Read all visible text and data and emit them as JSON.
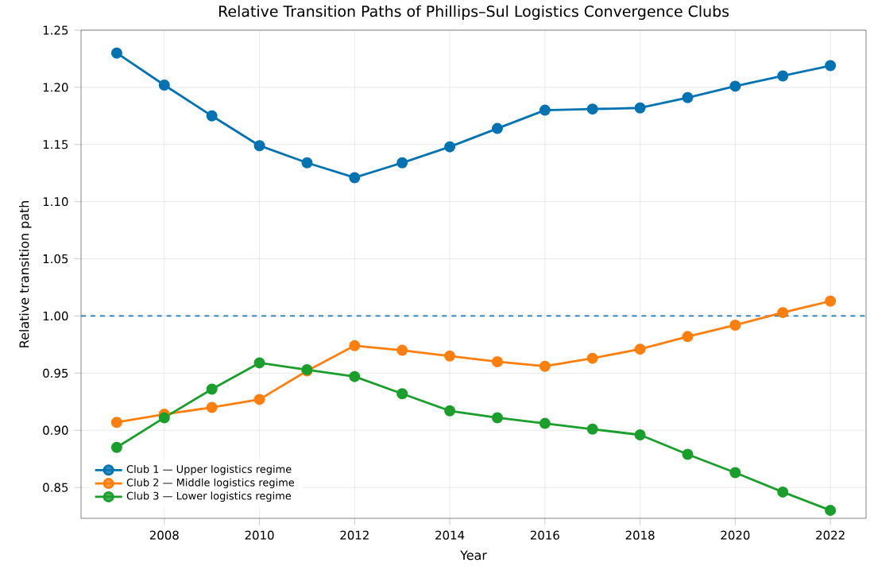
{
  "chart_data": {
    "type": "line",
    "title": "Relative Transition Paths of Phillips–Sul Logistics Convergence Clubs",
    "xlabel": "Year",
    "ylabel": "Relative transition path",
    "x": [
      2007,
      2008,
      2009,
      2010,
      2011,
      2012,
      2013,
      2014,
      2015,
      2016,
      2017,
      2018,
      2019,
      2020,
      2021,
      2022
    ],
    "series": [
      {
        "name": "Club 1 — Upper logistics regime",
        "color": "#0173b2",
        "values": [
          1.23,
          1.202,
          1.175,
          1.149,
          1.134,
          1.121,
          1.134,
          1.148,
          1.164,
          1.18,
          1.181,
          1.182,
          1.191,
          1.201,
          1.21,
          1.219
        ]
      },
      {
        "name": "Club 2 — Middle logistics regime",
        "color": "#ff7f0e",
        "values": [
          0.907,
          0.914,
          0.92,
          0.927,
          0.952,
          0.974,
          0.97,
          0.965,
          0.96,
          0.956,
          0.963,
          0.971,
          0.982,
          0.992,
          1.003,
          1.013
        ]
      },
      {
        "name": "Club 3 — Lower logistics regime",
        "color": "#1a9e2c",
        "values": [
          0.885,
          0.911,
          0.936,
          0.959,
          0.953,
          0.947,
          0.932,
          0.917,
          0.911,
          0.906,
          0.901,
          0.896,
          0.879,
          0.863,
          0.846,
          0.83
        ]
      }
    ],
    "xlim": [
      2006.25,
      2022.75
    ],
    "ylim": [
      0.823,
      1.25
    ],
    "xticks": [
      2008,
      2010,
      2012,
      2014,
      2016,
      2018,
      2020,
      2022
    ],
    "yticks": [
      0.85,
      {
        "value": 0.9,
        "label": "0.90"
      },
      0.95,
      {
        "value": 1.0,
        "label": "1.00"
      },
      1.05,
      {
        "value": 1.1,
        "label": "1.10"
      },
      1.15,
      {
        "value": 1.2,
        "label": "1.20"
      },
      1.25
    ],
    "ref_lines": [
      {
        "axis": "y",
        "value": 1.0,
        "color": "#1f77b4",
        "line_style": "dashed"
      }
    ],
    "grid": true,
    "legend": "bottom left",
    "marker": "circle",
    "line_style": "solid"
  }
}
